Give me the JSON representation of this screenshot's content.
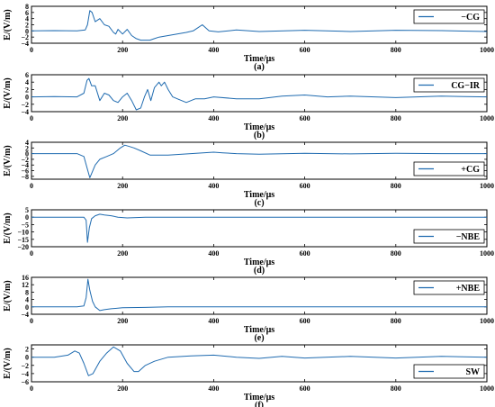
{
  "colors": {
    "series": "#1f6bb0",
    "axis": "#000000"
  },
  "chart_data": [
    {
      "type": "line",
      "tag": "(a)",
      "ylabel": "E/(V/m)",
      "xlabel": "Time/μs",
      "xlim": [
        0,
        1000
      ],
      "ylim": [
        -4,
        8
      ],
      "xticks": [
        0,
        200,
        400,
        600,
        800,
        1000
      ],
      "yticks": [
        -4,
        -2,
        0,
        2,
        4,
        6,
        8
      ],
      "legend_position": "top-right",
      "series": [
        {
          "name": "−CG",
          "x": [
            0,
            50,
            100,
            118,
            123,
            128,
            133,
            140,
            150,
            160,
            170,
            180,
            185,
            190,
            200,
            210,
            220,
            230,
            240,
            250,
            260,
            270,
            280,
            300,
            320,
            340,
            355,
            365,
            375,
            390,
            410,
            450,
            500,
            600,
            700,
            800,
            900,
            1000
          ],
          "y": [
            0,
            0.1,
            0,
            0.3,
            2,
            6.6,
            6,
            3,
            4,
            2,
            1.5,
            -0.5,
            -1,
            0.5,
            -1,
            0.5,
            -1.5,
            -2.5,
            -3,
            -3,
            -3,
            -2.5,
            -2,
            -1.5,
            -1,
            -0.5,
            0,
            1,
            2,
            0,
            -0.3,
            0.3,
            -0.2,
            0.2,
            -0.2,
            0.2,
            0.1,
            -0.2
          ]
        }
      ]
    },
    {
      "type": "line",
      "tag": "(b)",
      "ylabel": "E/(V/m)",
      "xlabel": "Time/μs",
      "xlim": [
        0,
        1000
      ],
      "ylim": [
        -4,
        6
      ],
      "xticks": [
        0,
        200,
        400,
        600,
        800,
        1000
      ],
      "yticks": [
        -4,
        -2,
        0,
        2,
        4,
        6
      ],
      "legend_position": "top-right",
      "series": [
        {
          "name": "CG−IR",
          "x": [
            0,
            50,
            100,
            115,
            122,
            126,
            132,
            140,
            150,
            160,
            170,
            180,
            190,
            200,
            210,
            220,
            230,
            240,
            248,
            255,
            262,
            270,
            280,
            285,
            292,
            300,
            310,
            320,
            340,
            360,
            380,
            400,
            450,
            500,
            550,
            600,
            650,
            700,
            800,
            900,
            1000
          ],
          "y": [
            0,
            0.1,
            0,
            1,
            4.5,
            5,
            3,
            3,
            -1,
            1,
            0.5,
            -1,
            -1.5,
            0,
            1,
            -1,
            -3.5,
            -3,
            0,
            2,
            -1,
            2.5,
            4,
            3,
            4,
            2,
            0,
            -0.5,
            -1.5,
            -0.5,
            -0.5,
            0,
            -0.5,
            -0.5,
            0.2,
            0.5,
            0,
            0.2,
            -0.2,
            0.2,
            0
          ]
        }
      ]
    },
    {
      "type": "line",
      "tag": "(c)",
      "ylabel": "E/(V/m)",
      "xlabel": "Time/μs",
      "xlim": [
        0,
        1000
      ],
      "ylim": [
        -9,
        4
      ],
      "xticks": [
        0,
        200,
        400,
        600,
        800,
        1000
      ],
      "yticks": [
        -8,
        -6,
        -4,
        -2,
        0,
        2,
        4
      ],
      "legend_position": "bottom-right",
      "series": [
        {
          "name": "+CG",
          "x": [
            0,
            100,
            115,
            122,
            128,
            132,
            140,
            150,
            165,
            180,
            195,
            205,
            215,
            225,
            240,
            260,
            300,
            350,
            400,
            420,
            450,
            500,
            600,
            700,
            800,
            900,
            1000
          ],
          "y": [
            0,
            0,
            -1,
            -5,
            -8.5,
            -7,
            -4,
            -2,
            -1,
            0,
            2,
            3,
            2.5,
            2,
            1,
            -0.5,
            -0.5,
            0,
            0.5,
            0.3,
            0,
            -0.2,
            0.1,
            -0.1,
            0.1,
            0,
            0
          ]
        }
      ]
    },
    {
      "type": "line",
      "tag": "(d)",
      "ylabel": "E/(V/m)",
      "xlabel": "Time/μs",
      "xlim": [
        0,
        1000
      ],
      "ylim": [
        -20,
        5
      ],
      "xticks": [
        0,
        200,
        400,
        600,
        800,
        1000
      ],
      "yticks": [
        -20,
        -15,
        -10,
        -5,
        0,
        5
      ],
      "legend_position": "bottom-right",
      "series": [
        {
          "name": "−NBE",
          "x": [
            0,
            100,
            115,
            120,
            123,
            127,
            132,
            140,
            150,
            160,
            175,
            190,
            210,
            250,
            300,
            400,
            500,
            600,
            700,
            800,
            900,
            1000
          ],
          "y": [
            0,
            0,
            0,
            -2,
            -17,
            -7,
            -1,
            1,
            2,
            1.5,
            1,
            0,
            -0.5,
            0,
            0,
            0,
            0,
            0,
            0,
            0,
            0,
            0
          ]
        }
      ]
    },
    {
      "type": "line",
      "tag": "(e)",
      "ylabel": "E/(V/m)",
      "xlabel": "Time/μs",
      "xlim": [
        0,
        1000
      ],
      "ylim": [
        -4,
        16
      ],
      "xticks": [
        0,
        200,
        400,
        600,
        800,
        1000
      ],
      "yticks": [
        -4,
        0,
        4,
        8,
        12,
        16
      ],
      "legend_position": "top-right",
      "series": [
        {
          "name": "+NBE",
          "x": [
            0,
            100,
            115,
            120,
            124,
            128,
            134,
            140,
            150,
            160,
            175,
            200,
            250,
            300,
            400,
            500,
            600,
            700,
            800,
            900,
            1000
          ],
          "y": [
            0,
            0,
            0.5,
            5,
            15,
            9,
            3,
            0,
            -2,
            -1.5,
            -1,
            -0.5,
            -0.3,
            0,
            0,
            0,
            0,
            0,
            0,
            0,
            0
          ]
        }
      ]
    },
    {
      "type": "line",
      "tag": "(f)",
      "ylabel": "E/(V/m)",
      "xlabel": "Time/μs",
      "xlim": [
        0,
        1000
      ],
      "ylim": [
        -6,
        3
      ],
      "xticks": [
        0,
        200,
        400,
        600,
        800,
        1000
      ],
      "yticks": [
        -6,
        -4,
        -2,
        0,
        2
      ],
      "legend_position": "bottom-right",
      "series": [
        {
          "name": "SW",
          "x": [
            0,
            50,
            80,
            95,
            105,
            115,
            125,
            135,
            150,
            165,
            180,
            195,
            210,
            225,
            235,
            250,
            270,
            300,
            350,
            400,
            450,
            500,
            550,
            600,
            700,
            800,
            900,
            1000
          ],
          "y": [
            0,
            0,
            0.5,
            1.5,
            1,
            -1.5,
            -4.5,
            -4,
            -1,
            1,
            2.5,
            1.5,
            -1.5,
            -3.5,
            -3.5,
            -2,
            -1,
            0,
            0.3,
            0.5,
            0,
            -0.3,
            0.2,
            -0.2,
            0.2,
            -0.2,
            0.2,
            0
          ]
        }
      ]
    }
  ]
}
